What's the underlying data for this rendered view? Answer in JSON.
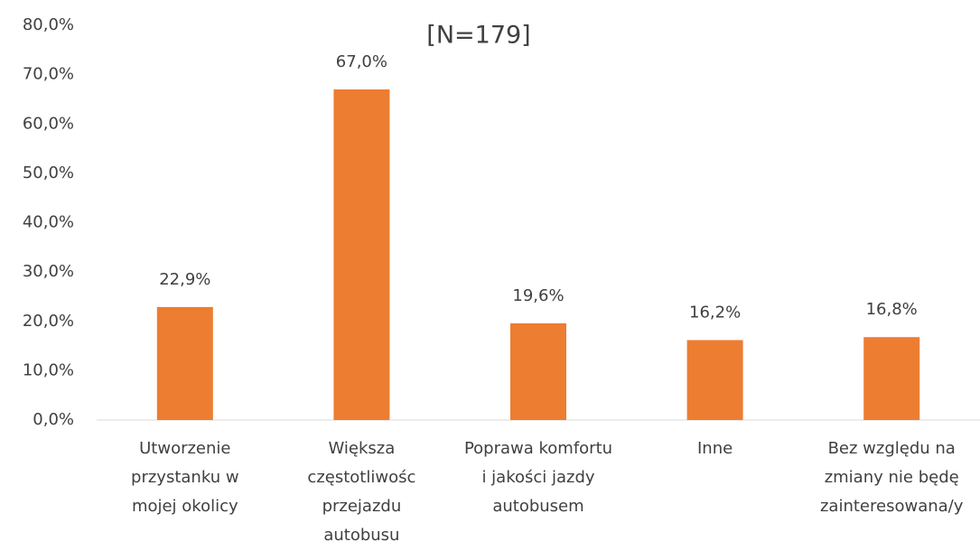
{
  "chart_data": {
    "type": "bar",
    "title": "[N=179]",
    "categories": [
      [
        "Utworzenie",
        "przystanku w",
        "mojej okolicy"
      ],
      [
        "Większa",
        "częstotliwośc",
        "przejazdu",
        "autobusu"
      ],
      [
        "Poprawa komfortu",
        "i jakości jazdy",
        "autobusem"
      ],
      [
        "Inne"
      ],
      [
        "Bez względu na",
        "zmiany nie będę",
        "zainteresowana/y"
      ]
    ],
    "values": [
      22.9,
      67.0,
      19.6,
      16.2,
      16.8
    ],
    "value_labels": [
      "22,9%",
      "67,0%",
      "19,6%",
      "16,2%",
      "16,8%"
    ],
    "color": "#ed7d31",
    "ylim": [
      0,
      80
    ],
    "yticks": [
      {
        "value": 0,
        "label": "0,0%"
      },
      {
        "value": 10,
        "label": "10,0%"
      },
      {
        "value": 20,
        "label": "20,0%"
      },
      {
        "value": 30,
        "label": "30,0%"
      },
      {
        "value": 40,
        "label": "40,0%"
      },
      {
        "value": 50,
        "label": "50,0%"
      },
      {
        "value": 60,
        "label": "60,0%"
      },
      {
        "value": 70,
        "label": "70,0%"
      },
      {
        "value": 80,
        "label": "80,0%"
      }
    ],
    "grid": false
  }
}
